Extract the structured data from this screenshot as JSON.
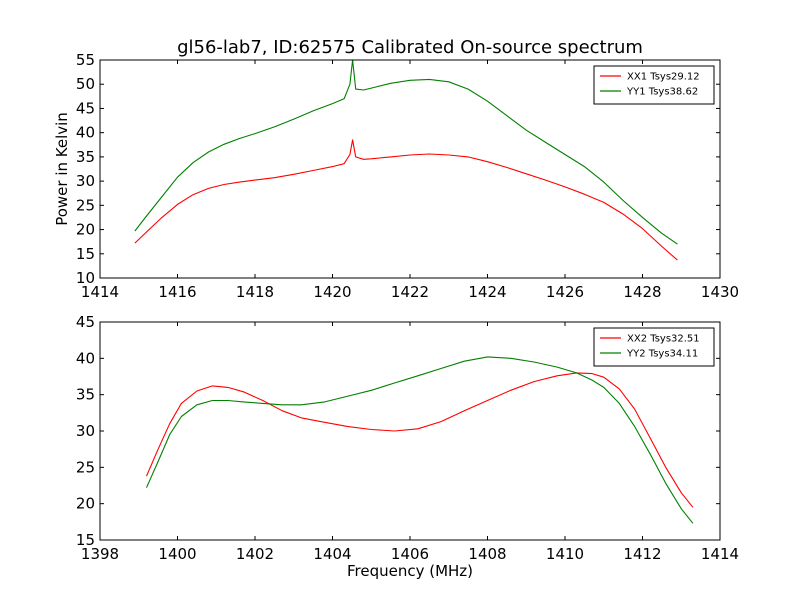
{
  "figure": {
    "title": "gl56-lab7, ID:62575 Calibrated On-source spectrum",
    "shared_ylabel": "Power in Kelvin",
    "shared_xlabel": "Frequency (MHz)"
  },
  "colors": {
    "red": "#ff0000",
    "green": "#008000",
    "axis": "#000000",
    "background": "#ffffff"
  },
  "chart_data": [
    {
      "type": "line",
      "title": "gl56-lab7, ID:62575 Calibrated On-source spectrum",
      "xlabel": "",
      "ylabel": "Power in Kelvin",
      "xlim": [
        1414,
        1430
      ],
      "ylim": [
        10,
        55
      ],
      "xticks": [
        1414,
        1416,
        1418,
        1420,
        1422,
        1424,
        1426,
        1428,
        1430
      ],
      "yticks": [
        10,
        15,
        20,
        25,
        30,
        35,
        40,
        45,
        50,
        55
      ],
      "grid": false,
      "legend_position": "top-right",
      "series": [
        {
          "name": "XX1 Tsys29.12",
          "color": "#ff0000",
          "x": [
            1414.9,
            1415.2,
            1415.6,
            1416.0,
            1416.4,
            1416.8,
            1417.2,
            1417.6,
            1418.0,
            1418.5,
            1419.0,
            1419.5,
            1420.0,
            1420.3,
            1420.45,
            1420.52,
            1420.6,
            1420.8,
            1421.0,
            1421.5,
            1422.0,
            1422.5,
            1423.0,
            1423.5,
            1424.0,
            1424.5,
            1425.0,
            1425.5,
            1426.0,
            1426.5,
            1427.0,
            1427.5,
            1428.0,
            1428.5,
            1428.9
          ],
          "values": [
            17.2,
            19.5,
            22.5,
            25.2,
            27.2,
            28.5,
            29.3,
            29.8,
            30.2,
            30.7,
            31.4,
            32.2,
            33.0,
            33.6,
            35.5,
            38.5,
            35.0,
            34.5,
            34.6,
            35.0,
            35.4,
            35.6,
            35.4,
            35.0,
            34.0,
            32.8,
            31.5,
            30.2,
            28.8,
            27.3,
            25.6,
            23.2,
            20.2,
            16.5,
            13.7
          ]
        },
        {
          "name": "YY1 Tsys38.62",
          "color": "#008000",
          "x": [
            1414.9,
            1415.2,
            1415.6,
            1416.0,
            1416.4,
            1416.8,
            1417.2,
            1417.6,
            1418.0,
            1418.5,
            1419.0,
            1419.5,
            1420.0,
            1420.3,
            1420.45,
            1420.52,
            1420.6,
            1420.8,
            1421.0,
            1421.5,
            1422.0,
            1422.5,
            1423.0,
            1423.5,
            1424.0,
            1424.5,
            1425.0,
            1425.5,
            1426.0,
            1426.5,
            1427.0,
            1427.5,
            1428.0,
            1428.5,
            1428.9
          ],
          "values": [
            19.7,
            22.8,
            26.8,
            30.8,
            33.8,
            36.0,
            37.6,
            38.8,
            39.8,
            41.2,
            42.8,
            44.5,
            46.0,
            47.0,
            50.0,
            55.0,
            49.0,
            48.8,
            49.2,
            50.2,
            50.8,
            51.0,
            50.5,
            49.0,
            46.5,
            43.5,
            40.5,
            38.0,
            35.5,
            33.0,
            29.8,
            26.0,
            22.5,
            19.2,
            17.0
          ]
        }
      ]
    },
    {
      "type": "line",
      "title": "",
      "xlabel": "Frequency (MHz)",
      "ylabel": "",
      "xlim": [
        1398,
        1414
      ],
      "ylim": [
        15,
        45
      ],
      "xticks": [
        1398,
        1400,
        1402,
        1404,
        1406,
        1408,
        1410,
        1412,
        1414
      ],
      "yticks": [
        15,
        20,
        25,
        30,
        35,
        40,
        45
      ],
      "grid": false,
      "legend_position": "top-right",
      "series": [
        {
          "name": "XX2 Tsys32.51",
          "color": "#ff0000",
          "x": [
            1399.2,
            1399.5,
            1399.8,
            1400.1,
            1400.5,
            1400.9,
            1401.3,
            1401.7,
            1402.2,
            1402.7,
            1403.2,
            1403.8,
            1404.4,
            1405.0,
            1405.6,
            1406.2,
            1406.8,
            1407.4,
            1408.0,
            1408.6,
            1409.2,
            1409.8,
            1410.3,
            1410.7,
            1411.0,
            1411.4,
            1411.8,
            1412.2,
            1412.6,
            1413.0,
            1413.3
          ],
          "values": [
            23.8,
            27.5,
            31.0,
            33.8,
            35.5,
            36.2,
            36.0,
            35.4,
            34.2,
            32.8,
            31.8,
            31.2,
            30.6,
            30.2,
            30.0,
            30.3,
            31.3,
            32.8,
            34.2,
            35.6,
            36.8,
            37.6,
            38.0,
            37.9,
            37.4,
            35.8,
            33.0,
            29.0,
            25.0,
            21.5,
            19.5
          ]
        },
        {
          "name": "YY2 Tsys34.11",
          "color": "#008000",
          "x": [
            1399.2,
            1399.5,
            1399.8,
            1400.1,
            1400.5,
            1400.9,
            1401.3,
            1401.7,
            1402.2,
            1402.7,
            1403.2,
            1403.8,
            1404.4,
            1405.0,
            1405.6,
            1406.2,
            1406.8,
            1407.4,
            1408.0,
            1408.6,
            1409.2,
            1409.8,
            1410.3,
            1410.7,
            1411.0,
            1411.4,
            1411.8,
            1412.2,
            1412.6,
            1413.0,
            1413.3
          ],
          "values": [
            22.2,
            25.8,
            29.5,
            32.0,
            33.6,
            34.2,
            34.2,
            34.0,
            33.8,
            33.6,
            33.6,
            34.0,
            34.8,
            35.6,
            36.6,
            37.6,
            38.6,
            39.6,
            40.2,
            40.0,
            39.5,
            38.8,
            38.0,
            37.0,
            36.0,
            33.8,
            30.6,
            26.8,
            22.8,
            19.3,
            17.3
          ]
        }
      ]
    }
  ]
}
